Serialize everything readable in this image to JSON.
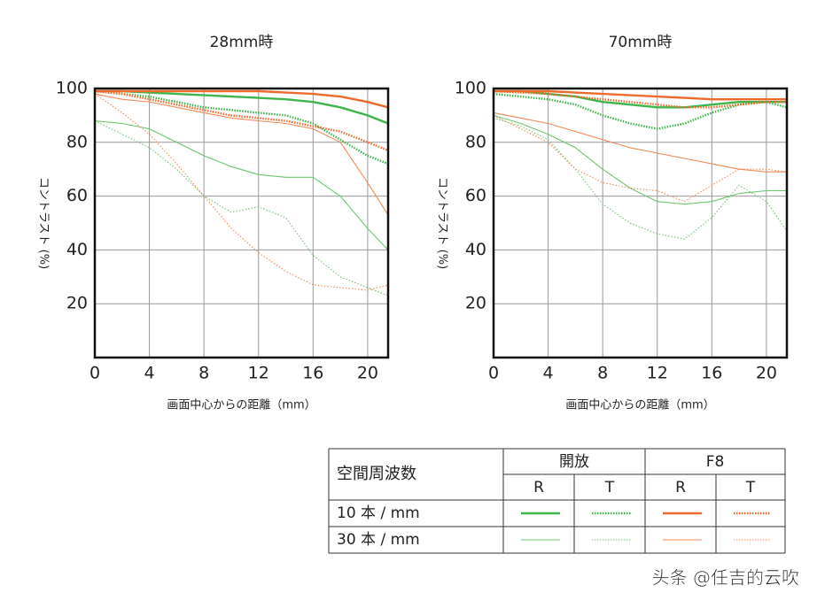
{
  "chart_data": [
    {
      "type": "line",
      "title": "28mm時",
      "x_label": "画面中心からの距離（mm）",
      "y_label": "コントラスト (%)",
      "x": [
        0,
        2,
        4,
        6,
        8,
        10,
        12,
        14,
        16,
        18,
        20,
        21.5
      ],
      "xlim": [
        0,
        21.5
      ],
      "ylim": [
        0,
        100
      ],
      "xticks": [
        0,
        4,
        8,
        12,
        16,
        20
      ],
      "yticks": [
        20,
        40,
        60,
        80,
        100
      ],
      "grid": true,
      "series": [
        {
          "color": "#3db54a",
          "width": 2.4,
          "dashed": false,
          "values": [
            99,
            99,
            98.5,
            98,
            97.5,
            97,
            96.5,
            96,
            95,
            93,
            90,
            87
          ]
        },
        {
          "color": "#3db54a",
          "width": 2.4,
          "dashed": true,
          "values": [
            99,
            98,
            97,
            95,
            93,
            92,
            91,
            90,
            87,
            81,
            75,
            72
          ]
        },
        {
          "color": "#ee6a2c",
          "width": 2.4,
          "dashed": false,
          "values": [
            99,
            99,
            99,
            99,
            99,
            99,
            99,
            98.5,
            98,
            97,
            95,
            93
          ]
        },
        {
          "color": "#ee6a2c",
          "width": 2.4,
          "dashed": true,
          "values": [
            99,
            98,
            96,
            94,
            92,
            90,
            89,
            88,
            86,
            84,
            80,
            77
          ]
        },
        {
          "color": "#6cc66f",
          "width": 1.1,
          "dashed": false,
          "values": [
            88,
            87,
            85,
            80,
            75,
            71,
            68,
            67,
            67,
            60,
            48,
            40
          ]
        },
        {
          "color": "#6cc66f",
          "width": 1.1,
          "dashed": true,
          "values": [
            88,
            83,
            78,
            70,
            60,
            54,
            56,
            52,
            38,
            30,
            26,
            23
          ]
        },
        {
          "color": "#f08a55",
          "width": 1.1,
          "dashed": false,
          "values": [
            98,
            96,
            95,
            93,
            91,
            89,
            88,
            87,
            85,
            80,
            65,
            53
          ]
        },
        {
          "color": "#f08a55",
          "width": 1.1,
          "dashed": true,
          "values": [
            98,
            91,
            83,
            72,
            60,
            48,
            39,
            32,
            27,
            26,
            25,
            27
          ]
        }
      ]
    },
    {
      "type": "line",
      "title": "70mm時",
      "x_label": "画面中心からの距離（mm）",
      "y_label": "コントラスト (%)",
      "x": [
        0,
        2,
        4,
        6,
        8,
        10,
        12,
        14,
        16,
        18,
        20,
        21.5
      ],
      "xlim": [
        0,
        21.5
      ],
      "ylim": [
        0,
        100
      ],
      "xticks": [
        0,
        4,
        8,
        12,
        16,
        20
      ],
      "yticks": [
        20,
        40,
        60,
        80,
        100
      ],
      "grid": true,
      "series": [
        {
          "color": "#3db54a",
          "width": 2.4,
          "dashed": false,
          "values": [
            99,
            99,
            98,
            97,
            95,
            94,
            93,
            93,
            94,
            95,
            95,
            95
          ]
        },
        {
          "color": "#3db54a",
          "width": 2.4,
          "dashed": true,
          "values": [
            98,
            97,
            96,
            94,
            90,
            87,
            85,
            87,
            91,
            94,
            95,
            93
          ]
        },
        {
          "color": "#ee6a2c",
          "width": 2.4,
          "dashed": false,
          "values": [
            99,
            99,
            99,
            98.5,
            98,
            97.5,
            97,
            96.5,
            96,
            96,
            96,
            96
          ]
        },
        {
          "color": "#ee6a2c",
          "width": 2.4,
          "dashed": true,
          "values": [
            99,
            98.5,
            98,
            97,
            96,
            95,
            94,
            93,
            93,
            94,
            95,
            95
          ]
        },
        {
          "color": "#6cc66f",
          "width": 1.1,
          "dashed": false,
          "values": [
            90,
            87,
            83,
            78,
            70,
            63,
            58,
            57,
            58,
            61,
            62,
            62
          ]
        },
        {
          "color": "#6cc66f",
          "width": 1.1,
          "dashed": true,
          "values": [
            89,
            86,
            81,
            70,
            57,
            50,
            46,
            44,
            52,
            64,
            58,
            47
          ]
        },
        {
          "color": "#f08a55",
          "width": 1.1,
          "dashed": false,
          "values": [
            91,
            89,
            87,
            84,
            81,
            78,
            76,
            74,
            72,
            70,
            69,
            69
          ]
        },
        {
          "color": "#f08a55",
          "width": 1.1,
          "dashed": true,
          "values": [
            90,
            85,
            80,
            70,
            65,
            63,
            62,
            58,
            64,
            70,
            70,
            69
          ]
        }
      ]
    }
  ],
  "legend_table": {
    "corner": "空間周波数",
    "groups": [
      "開放",
      "F8"
    ],
    "columns": [
      "R",
      "T",
      "R",
      "T"
    ],
    "rows": [
      "10 本 / mm",
      "30 本 / mm"
    ]
  },
  "watermark": "头条 @任吉的云吹"
}
